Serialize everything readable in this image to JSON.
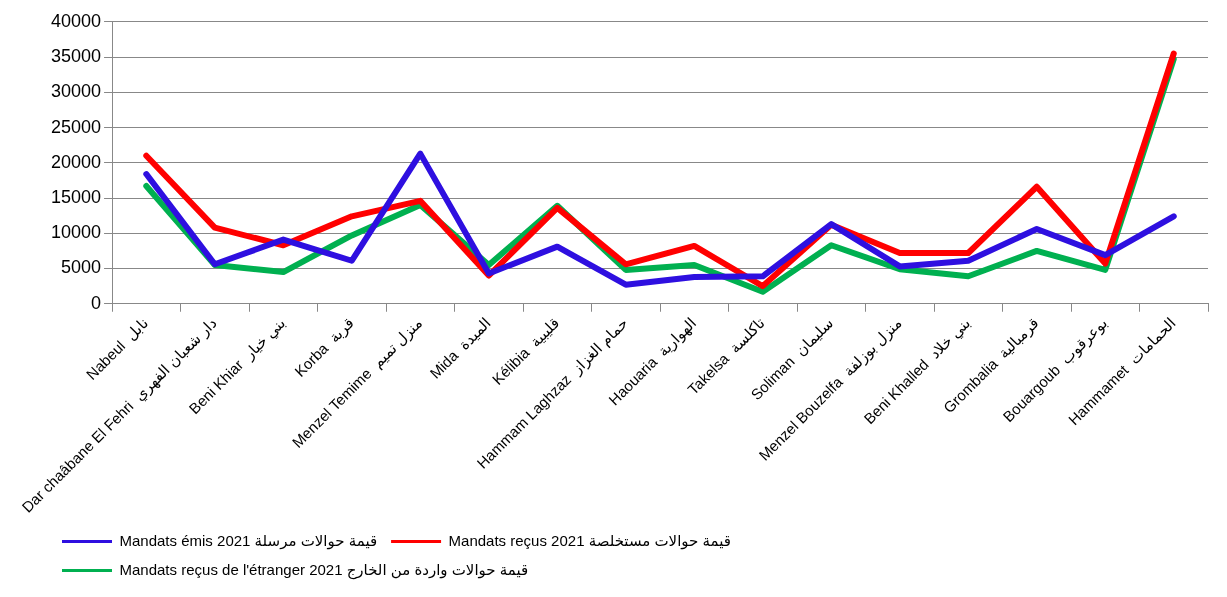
{
  "chart_data": {
    "type": "line",
    "categories": [
      "Nabeul  نابل",
      "Dar chaâbane El Fehri  دار شعبان الفهري",
      "Beni Khiar  بني خيار",
      "Korba  قربة",
      "Menzel Temime  منزل تميم",
      "Mida  الميدة",
      "Kélibia  قليبية",
      "Hammam Laghzaz  حمام الغزاز",
      "Haouaria  الهوارية",
      "Takelsa  تاكلسة",
      "Soliman  سليمان",
      "Menzel Bouzelfa  منزل بوزلفة",
      "Beni Khalled  بني خلاد",
      "Grombalia  قرمبالية",
      "Bouargoub  بوعرقوب",
      "Hammamet  الحمامات"
    ],
    "series": [
      {
        "name": "Mandats émis 2021 قيمة حوالات مرسلة",
        "color": "#2e0fe0",
        "values": [
          18400,
          5600,
          9100,
          6100,
          21300,
          4300,
          8100,
          2700,
          3800,
          3900,
          11300,
          5300,
          6100,
          10600,
          6900,
          12400
        ]
      },
      {
        "name": "Mandats reçus 2021 قيمة حوالات مستخلصة",
        "color": "#ff0000",
        "values": [
          21000,
          10800,
          8300,
          12400,
          14600,
          4000,
          13600,
          5600,
          8200,
          2500,
          11200,
          7200,
          7200,
          16600,
          5700,
          35500
        ]
      },
      {
        "name": "Mandats reçus de l'étranger 2021 قيمة حوالات واردة من الخارج",
        "color": "#00b050",
        "values": [
          16700,
          5500,
          4500,
          9700,
          14000,
          5500,
          13900,
          4800,
          5500,
          1700,
          8300,
          4900,
          3900,
          7500,
          4800,
          34700
        ]
      }
    ],
    "ylim": [
      0,
      40000
    ],
    "yticks": [
      0,
      5000,
      10000,
      15000,
      20000,
      25000,
      30000,
      35000,
      40000
    ],
    "grid": "y",
    "legend": "bottom",
    "marker": "none",
    "line_style": "solid"
  }
}
